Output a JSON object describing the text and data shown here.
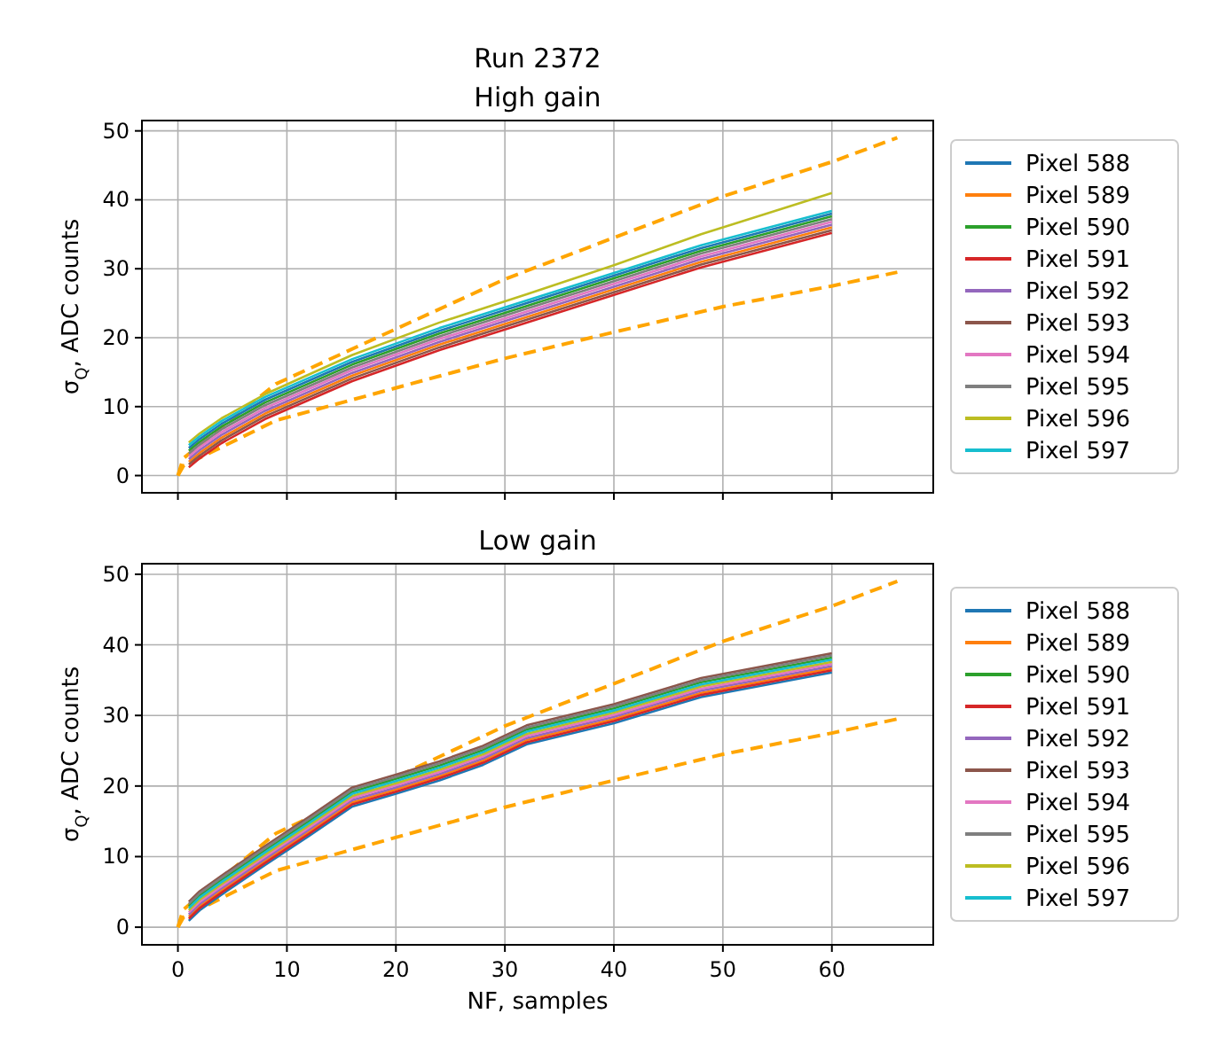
{
  "chart_data": [
    {
      "type": "line",
      "title": "Run 2372",
      "subtitle": "High gain",
      "ylabel": "σ$_{Q}$, ADC counts",
      "xlim": [
        -3.3,
        69.3
      ],
      "xticks": [
        0,
        10,
        20,
        30,
        40,
        50,
        60
      ],
      "ylim": [
        -2.5,
        51.5
      ],
      "yticks": [
        0,
        10,
        20,
        30,
        40,
        50
      ],
      "grid": true,
      "legend": "right",
      "tick_labels": "y",
      "series": [
        {
          "color": "#ffa500",
          "line_style": "dashed",
          "x": [
            0,
            0.5,
            9,
            30,
            40,
            50,
            60,
            66
          ],
          "values": [
            0,
            2.5,
            13.3,
            28.5,
            34.5,
            40.5,
            45.5,
            49
          ]
        },
        {
          "color": "#ffa500",
          "line_style": "dashed",
          "x": [
            0,
            0.5,
            9,
            30,
            40,
            50,
            60,
            66
          ],
          "values": [
            0,
            1.4,
            8,
            17,
            20.8,
            24.5,
            27.5,
            29.5
          ]
        },
        {
          "name": "Pixel 588",
          "color": "#1f77b4",
          "x": [
            1,
            2,
            4,
            8,
            16,
            24,
            32,
            40,
            48,
            60
          ],
          "values": [
            4,
            5.3,
            7.5,
            11,
            16.5,
            21,
            25,
            29,
            33,
            38
          ]
        },
        {
          "name": "Pixel 589",
          "color": "#ff7f0e",
          "x": [
            1,
            2,
            4,
            8,
            16,
            24,
            32,
            40,
            48,
            60
          ],
          "values": [
            2,
            3.3,
            5.5,
            9,
            14.5,
            19,
            23,
            27,
            31,
            36
          ]
        },
        {
          "name": "Pixel 590",
          "color": "#2ca02c",
          "x": [
            1,
            2,
            4,
            8,
            16,
            24,
            32,
            40,
            48,
            60
          ],
          "values": [
            3.6,
            4.9,
            7.1,
            10.6,
            16.1,
            20.6,
            24.6,
            28.6,
            32.6,
            37.6
          ]
        },
        {
          "name": "Pixel 591",
          "color": "#d62728",
          "x": [
            1,
            2,
            4,
            8,
            16,
            24,
            32,
            40,
            48,
            60
          ],
          "values": [
            1.2,
            2.5,
            4.7,
            8.2,
            13.7,
            18.2,
            22.2,
            26.2,
            30.2,
            35.2
          ]
        },
        {
          "name": "Pixel 592",
          "color": "#9467bd",
          "x": [
            1,
            2,
            4,
            8,
            16,
            24,
            32,
            40,
            48,
            60
          ],
          "values": [
            2.4,
            3.7,
            5.9,
            9.4,
            14.9,
            19.4,
            23.4,
            27.4,
            31.4,
            36.4
          ]
        },
        {
          "name": "Pixel 593",
          "color": "#8c564b",
          "x": [
            1,
            2,
            4,
            8,
            16,
            24,
            32,
            40,
            48,
            60
          ],
          "values": [
            1.6,
            2.9,
            5.1,
            8.6,
            14.1,
            18.6,
            22.6,
            26.6,
            30.6,
            35.6
          ]
        },
        {
          "name": "Pixel 594",
          "color": "#e377c2",
          "x": [
            1,
            2,
            4,
            8,
            16,
            24,
            32,
            40,
            48,
            60
          ],
          "values": [
            2.8,
            4.1,
            6.3,
            9.8,
            15.3,
            19.8,
            23.8,
            27.8,
            31.8,
            36.8
          ]
        },
        {
          "name": "Pixel 595",
          "color": "#7f7f7f",
          "x": [
            1,
            2,
            4,
            8,
            16,
            24,
            32,
            40,
            48,
            60
          ],
          "values": [
            3.2,
            4.5,
            6.7,
            10.2,
            15.7,
            20.2,
            24.2,
            28.2,
            32.2,
            37.2
          ]
        },
        {
          "name": "Pixel 596",
          "color": "#bcbd22",
          "x": [
            1,
            2,
            4,
            8,
            16,
            24,
            32,
            40,
            48,
            60
          ],
          "values": [
            4.8,
            6.1,
            8.3,
            11.8,
            17.5,
            22.2,
            26.3,
            30.5,
            35,
            41
          ]
        },
        {
          "name": "Pixel 597",
          "color": "#17becf",
          "x": [
            1,
            2,
            4,
            8,
            16,
            24,
            32,
            40,
            48,
            60
          ],
          "values": [
            4.4,
            5.7,
            7.9,
            11.4,
            16.9,
            21.4,
            25.4,
            29.4,
            33.4,
            38.4
          ]
        }
      ]
    },
    {
      "type": "line",
      "title": "Low gain",
      "xlabel": "NF, samples",
      "ylabel": "σ$_{Q}$, ADC counts",
      "xlim": [
        -3.3,
        69.3
      ],
      "xticks": [
        0,
        10,
        20,
        30,
        40,
        50,
        60
      ],
      "ylim": [
        -2.5,
        51.5
      ],
      "yticks": [
        0,
        10,
        20,
        30,
        40,
        50
      ],
      "grid": true,
      "legend": "right",
      "series": [
        {
          "color": "#ffa500",
          "line_style": "dashed",
          "x": [
            0,
            0.5,
            9,
            30,
            40,
            50,
            60,
            66
          ],
          "values": [
            0,
            2.5,
            13.3,
            28.5,
            34.5,
            40.5,
            45.5,
            49
          ]
        },
        {
          "color": "#ffa500",
          "line_style": "dashed",
          "x": [
            0,
            0.5,
            9,
            30,
            40,
            50,
            60,
            66
          ],
          "values": [
            0,
            1.4,
            8,
            17,
            20.8,
            24.5,
            27.5,
            29.5
          ]
        },
        {
          "name": "Pixel 588",
          "color": "#1f77b4",
          "x": [
            1,
            2,
            4,
            8,
            12,
            16,
            20,
            24,
            28,
            32,
            40,
            48,
            60
          ],
          "values": [
            0.9,
            2.4,
            4.6,
            8.8,
            12.9,
            17.1,
            18.9,
            20.8,
            23,
            25.9,
            28.9,
            32.6,
            36.1
          ]
        },
        {
          "name": "Pixel 589",
          "color": "#ff7f0e",
          "x": [
            1,
            2,
            4,
            8,
            12,
            16,
            20,
            24,
            28,
            32,
            40,
            48,
            60
          ],
          "values": [
            1.5,
            3,
            5.2,
            9.4,
            13.5,
            17.7,
            19.5,
            21.4,
            23.6,
            26.5,
            29.5,
            33.2,
            36.7
          ]
        },
        {
          "name": "Pixel 590",
          "color": "#2ca02c",
          "x": [
            1,
            2,
            4,
            8,
            12,
            16,
            20,
            24,
            28,
            32,
            40,
            48,
            60
          ],
          "values": [
            3,
            4.5,
            6.7,
            10.9,
            15,
            19.2,
            21,
            22.9,
            25.1,
            28,
            31,
            34.7,
            38.2
          ]
        },
        {
          "name": "Pixel 591",
          "color": "#d62728",
          "x": [
            1,
            2,
            4,
            8,
            12,
            16,
            20,
            24,
            28,
            32,
            40,
            48,
            60
          ],
          "values": [
            1.2,
            2.7,
            4.9,
            9.1,
            13.2,
            17.4,
            19.2,
            21.1,
            23.3,
            26.2,
            29.2,
            32.9,
            36.4
          ]
        },
        {
          "name": "Pixel 592",
          "color": "#9467bd",
          "x": [
            1,
            2,
            4,
            8,
            12,
            16,
            20,
            24,
            28,
            32,
            40,
            48,
            60
          ],
          "values": [
            1.8,
            3.3,
            5.5,
            9.7,
            13.8,
            18,
            19.8,
            21.7,
            23.9,
            26.8,
            29.8,
            33.5,
            37
          ]
        },
        {
          "name": "Pixel 593",
          "color": "#8c564b",
          "x": [
            1,
            2,
            4,
            8,
            12,
            16,
            20,
            24,
            28,
            32,
            40,
            48,
            60
          ],
          "values": [
            3.6,
            5.1,
            7.3,
            11.5,
            15.6,
            19.8,
            21.6,
            23.5,
            25.7,
            28.6,
            31.6,
            35.3,
            38.8
          ]
        },
        {
          "name": "Pixel 594",
          "color": "#e377c2",
          "x": [
            1,
            2,
            4,
            8,
            12,
            16,
            20,
            24,
            28,
            32,
            40,
            48,
            60
          ],
          "values": [
            2.1,
            3.6,
            5.8,
            10,
            14.1,
            18.3,
            20.1,
            22,
            24.2,
            27.1,
            30.1,
            33.8,
            37.3
          ]
        },
        {
          "name": "Pixel 595",
          "color": "#7f7f7f",
          "x": [
            1,
            2,
            4,
            8,
            12,
            16,
            20,
            24,
            28,
            32,
            40,
            48,
            60
          ],
          "values": [
            3.3,
            4.8,
            7,
            11.2,
            15.3,
            19.5,
            21.3,
            23.2,
            25.4,
            28.3,
            31.3,
            35,
            38.5
          ]
        },
        {
          "name": "Pixel 596",
          "color": "#bcbd22",
          "x": [
            1,
            2,
            4,
            8,
            12,
            16,
            20,
            24,
            28,
            32,
            40,
            48,
            60
          ],
          "values": [
            2.4,
            3.9,
            6.1,
            10.3,
            14.4,
            18.6,
            20.4,
            22.3,
            24.5,
            27.4,
            30.4,
            34.1,
            37.6
          ]
        },
        {
          "name": "Pixel 597",
          "color": "#17becf",
          "x": [
            1,
            2,
            4,
            8,
            12,
            16,
            20,
            24,
            28,
            32,
            40,
            48,
            60
          ],
          "values": [
            2.7,
            4.2,
            6.4,
            10.6,
            14.7,
            18.9,
            20.7,
            22.6,
            24.8,
            27.7,
            30.7,
            34.4,
            37.9
          ]
        }
      ]
    }
  ]
}
